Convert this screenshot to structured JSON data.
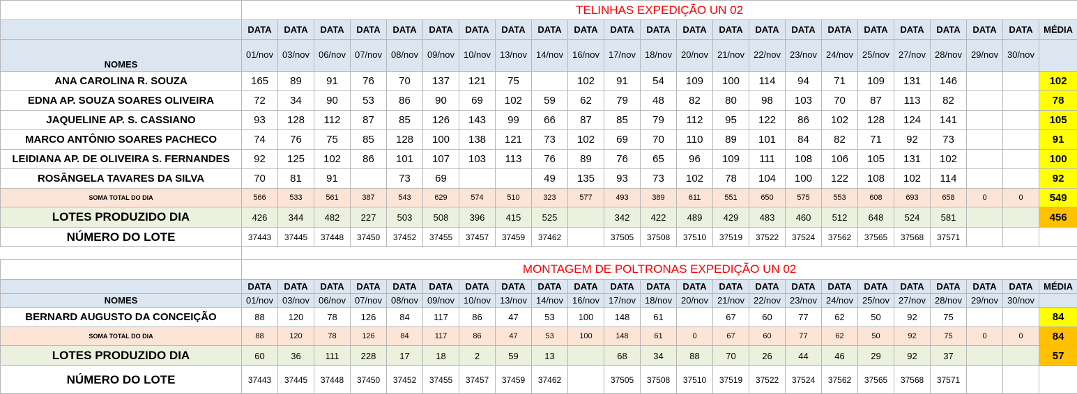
{
  "sections": [
    {
      "title": "TELINHAS EXPEDIÇÃO UN 02",
      "names_header": "NOMES",
      "average_header": "MÉDIA",
      "date_label": "DATA",
      "dates": [
        "01/nov",
        "03/nov",
        "06/nov",
        "07/nov",
        "08/nov",
        "09/nov",
        "10/nov",
        "13/nov",
        "14/nov",
        "16/nov",
        "17/nov",
        "18/nov",
        "20/nov",
        "21/nov",
        "22/nov",
        "23/nov",
        "24/nov",
        "25/nov",
        "27/nov",
        "28/nov",
        "29/nov",
        "30/nov"
      ],
      "employees": [
        {
          "name": "ANA CAROLINA R. SOUZA",
          "values": [
            "165",
            "89",
            "91",
            "76",
            "70",
            "137",
            "121",
            "75",
            "",
            "102",
            "91",
            "54",
            "109",
            "100",
            "114",
            "94",
            "71",
            "109",
            "131",
            "146",
            "",
            ""
          ],
          "average": "102"
        },
        {
          "name": "EDNA AP. SOUZA SOARES OLIVEIRA",
          "values": [
            "72",
            "34",
            "90",
            "53",
            "86",
            "90",
            "69",
            "102",
            "59",
            "62",
            "79",
            "48",
            "82",
            "80",
            "98",
            "103",
            "70",
            "87",
            "113",
            "82",
            "",
            ""
          ],
          "average": "78"
        },
        {
          "name": "JAQUELINE AP.  S. CASSIANO",
          "values": [
            "93",
            "128",
            "112",
            "87",
            "85",
            "126",
            "143",
            "99",
            "66",
            "87",
            "85",
            "79",
            "112",
            "95",
            "122",
            "86",
            "102",
            "128",
            "124",
            "141",
            "",
            ""
          ],
          "average": "105"
        },
        {
          "name": "MARCO ANTÔNIO SOARES PACHECO",
          "values": [
            "74",
            "76",
            "75",
            "85",
            "128",
            "100",
            "138",
            "121",
            "73",
            "102",
            "69",
            "70",
            "110",
            "89",
            "101",
            "84",
            "82",
            "71",
            "92",
            "73",
            "",
            ""
          ],
          "average": "91"
        },
        {
          "name": "LEIDIANA AP. DE OLIVEIRA S. FERNANDES",
          "values": [
            "92",
            "125",
            "102",
            "86",
            "101",
            "107",
            "103",
            "113",
            "76",
            "89",
            "76",
            "65",
            "96",
            "109",
            "111",
            "108",
            "106",
            "105",
            "131",
            "102",
            "",
            ""
          ],
          "average": "100"
        },
        {
          "name": "ROSÂNGELA TAVARES DA SILVA",
          "values": [
            "70",
            "81",
            "91",
            "",
            "73",
            "69",
            "",
            "",
            "49",
            "135",
            "93",
            "73",
            "102",
            "78",
            "104",
            "100",
            "122",
            "108",
            "102",
            "114",
            "",
            ""
          ],
          "average": "92"
        }
      ],
      "daily_total": {
        "label": "SOMA TOTAL DO DIA",
        "values": [
          "566",
          "533",
          "561",
          "387",
          "543",
          "629",
          "574",
          "510",
          "323",
          "577",
          "493",
          "389",
          "611",
          "551",
          "650",
          "575",
          "553",
          "608",
          "693",
          "658",
          "0",
          "0"
        ],
        "average": "549"
      },
      "lots_produced": {
        "label": "LOTES PRODUZIDO DIA",
        "values": [
          "426",
          "344",
          "482",
          "227",
          "503",
          "508",
          "396",
          "415",
          "525",
          "",
          "342",
          "422",
          "489",
          "429",
          "483",
          "460",
          "512",
          "648",
          "524",
          "581",
          "",
          ""
        ],
        "average": "456"
      },
      "lot_number": {
        "label": "NÚMERO DO LOTE",
        "values": [
          "37443",
          "37445",
          "37448",
          "37450",
          "37452",
          "37455",
          "37457",
          "37459",
          "37462",
          "",
          "37505",
          "37508",
          "37510",
          "37519",
          "37522",
          "37524",
          "37562",
          "37565",
          "37568",
          "37571",
          "",
          ""
        ],
        "average": ""
      }
    },
    {
      "title": "MONTAGEM DE POLTRONAS EXPEDIÇÃO UN 02",
      "names_header": "NOMES",
      "average_header": "MÉDIA",
      "date_label": "DATA",
      "dates": [
        "01/nov",
        "03/nov",
        "06/nov",
        "07/nov",
        "08/nov",
        "09/nov",
        "10/nov",
        "13/nov",
        "14/nov",
        "16/nov",
        "17/nov",
        "18/nov",
        "20/nov",
        "21/nov",
        "22/nov",
        "23/nov",
        "24/nov",
        "25/nov",
        "27/nov",
        "28/nov",
        "29/nov",
        "30/nov"
      ],
      "employees": [
        {
          "name": "BERNARD AUGUSTO DA CONCEIÇÃO",
          "values": [
            "88",
            "120",
            "78",
            "126",
            "84",
            "117",
            "86",
            "47",
            "53",
            "100",
            "148",
            "61",
            "",
            "67",
            "60",
            "77",
            "62",
            "50",
            "92",
            "75",
            "",
            ""
          ],
          "average": "84"
        }
      ],
      "daily_total": {
        "label": "SOMA TOTAL DO DIA",
        "values": [
          "88",
          "120",
          "78",
          "126",
          "84",
          "117",
          "86",
          "47",
          "53",
          "100",
          "148",
          "61",
          "0",
          "67",
          "60",
          "77",
          "62",
          "50",
          "92",
          "75",
          "0",
          "0"
        ],
        "average": "84"
      },
      "lots_produced": {
        "label": "LOTES PRODUZIDO DIA",
        "values": [
          "60",
          "36",
          "111",
          "228",
          "17",
          "18",
          "2",
          "59",
          "13",
          "",
          "68",
          "34",
          "88",
          "70",
          "26",
          "44",
          "46",
          "29",
          "92",
          "37",
          "",
          ""
        ],
        "average": "57"
      },
      "lot_number": {
        "label": "NÚMERO DO LOTE",
        "values": [
          "37443",
          "37445",
          "37448",
          "37450",
          "37452",
          "37455",
          "37457",
          "37459",
          "37462",
          "",
          "37505",
          "37508",
          "37510",
          "37519",
          "37522",
          "37524",
          "37562",
          "37565",
          "37568",
          "37571",
          "",
          ""
        ],
        "average": ""
      }
    }
  ]
}
